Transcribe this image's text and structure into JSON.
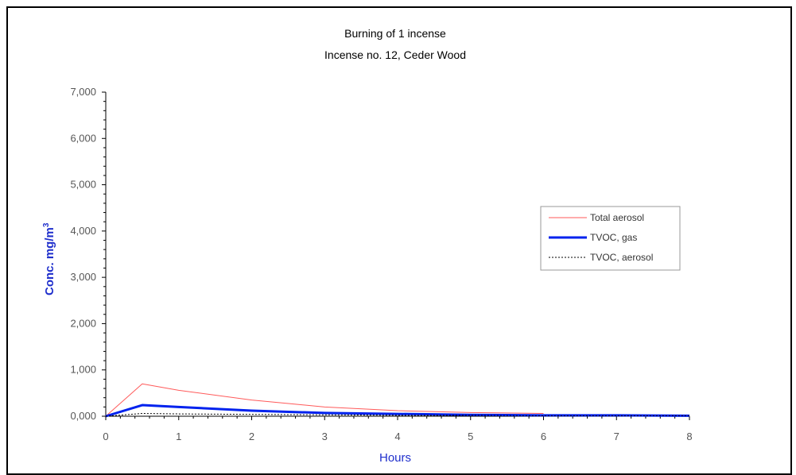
{
  "chart_data": {
    "type": "line",
    "title": "Burning of 1 incense",
    "subtitle": "Incense no. 12, Ceder Wood",
    "xlabel": "Hours",
    "ylabel": "Conc. mg/m",
    "ylabel_sup": "3",
    "xlim": [
      0,
      8
    ],
    "ylim": [
      0,
      7
    ],
    "xticks": [
      "0",
      "1",
      "2",
      "3",
      "4",
      "5",
      "6",
      "7",
      "8"
    ],
    "yticks": [
      "0,000",
      "1,000",
      "2,000",
      "3,000",
      "4,000",
      "5,000",
      "6,000",
      "7,000"
    ],
    "legend_position": "right",
    "series": [
      {
        "name": "Total aerosol",
        "color": "#ff5a5a",
        "style": "solid",
        "x": [
          0,
          0.5,
          1,
          2,
          3,
          4,
          5,
          6
        ],
        "y": [
          0.0,
          0.7,
          0.56,
          0.35,
          0.2,
          0.12,
          0.08,
          0.06
        ]
      },
      {
        "name": "TVOC, gas",
        "color": "#0022ee",
        "style": "thick",
        "x": [
          0,
          0.5,
          1,
          2,
          3,
          4,
          5,
          6,
          7,
          8
        ],
        "y": [
          0.0,
          0.24,
          0.2,
          0.12,
          0.07,
          0.05,
          0.03,
          0.02,
          0.02,
          0.01
        ]
      },
      {
        "name": "TVOC, aerosol",
        "color": "#000000",
        "style": "dotted",
        "x": [
          0,
          0.5,
          1,
          2,
          3,
          4,
          5,
          6,
          7,
          8
        ],
        "y": [
          0.0,
          0.06,
          0.05,
          0.04,
          0.03,
          0.02,
          0.02,
          0.01,
          0.01,
          0.01
        ]
      }
    ]
  }
}
